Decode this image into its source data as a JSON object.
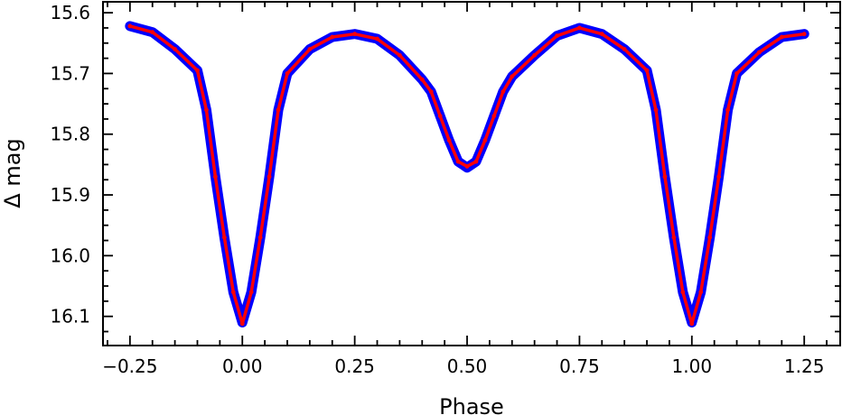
{
  "chart_data": {
    "type": "scatter",
    "title": "",
    "xlabel": "Phase",
    "ylabel": "Δ mag",
    "xlim": [
      -0.31,
      1.33
    ],
    "ylim": [
      16.148,
      15.582
    ],
    "y_inverted": true,
    "grid": false,
    "legend": "none",
    "x_ticks": [
      -0.25,
      0.0,
      0.25,
      0.5,
      0.75,
      1.0,
      1.25
    ],
    "x_tick_labels": [
      "−0.25",
      "0.00",
      "0.25",
      "0.50",
      "0.75",
      "1.00",
      "1.25"
    ],
    "y_ticks": [
      15.6,
      15.7,
      15.8,
      15.9,
      16.0,
      16.1
    ],
    "y_tick_labels": [
      "15.6",
      "15.7",
      "15.8",
      "15.9",
      "16.0",
      "16.1"
    ],
    "colors": {
      "observed": "#0000ff",
      "model": "#ff0000"
    },
    "series": [
      {
        "name": "",
        "color": "#0000ff",
        "x": [
          -0.25,
          -0.2,
          -0.15,
          -0.1,
          -0.08,
          -0.06,
          -0.04,
          -0.02,
          0.0,
          0.02,
          0.04,
          0.06,
          0.08,
          0.1,
          0.15,
          0.2,
          0.25,
          0.3,
          0.35,
          0.4,
          0.42,
          0.44,
          0.46,
          0.48,
          0.5,
          0.52,
          0.54,
          0.56,
          0.58,
          0.6,
          0.65,
          0.7,
          0.75,
          0.8,
          0.85,
          0.9,
          0.92,
          0.94,
          0.96,
          0.98,
          1.0,
          1.02,
          1.04,
          1.06,
          1.08,
          1.1,
          1.15,
          1.2,
          1.25
        ],
        "y": [
          15.622,
          15.632,
          15.66,
          15.695,
          15.76,
          15.87,
          15.97,
          16.06,
          16.11,
          16.06,
          15.97,
          15.87,
          15.76,
          15.7,
          15.66,
          15.64,
          15.635,
          15.643,
          15.67,
          15.71,
          15.73,
          15.77,
          15.81,
          15.845,
          15.855,
          15.845,
          15.81,
          15.77,
          15.73,
          15.705,
          15.67,
          15.638,
          15.625,
          15.635,
          15.66,
          15.695,
          15.76,
          15.87,
          15.97,
          16.06,
          16.11,
          16.06,
          15.97,
          15.87,
          15.76,
          15.7,
          15.665,
          15.64,
          15.635
        ]
      },
      {
        "name": "",
        "color": "#ff0000",
        "x": [
          -0.25,
          -0.2,
          -0.15,
          -0.1,
          -0.08,
          -0.06,
          -0.04,
          -0.02,
          0.0,
          0.02,
          0.04,
          0.06,
          0.08,
          0.1,
          0.15,
          0.2,
          0.25,
          0.3,
          0.35,
          0.4,
          0.42,
          0.44,
          0.46,
          0.48,
          0.5,
          0.52,
          0.54,
          0.56,
          0.58,
          0.6,
          0.65,
          0.7,
          0.75,
          0.8,
          0.85,
          0.9,
          0.92,
          0.94,
          0.96,
          0.98,
          1.0,
          1.02,
          1.04,
          1.06,
          1.08,
          1.1,
          1.15,
          1.2,
          1.25
        ],
        "y": [
          15.622,
          15.632,
          15.66,
          15.695,
          15.76,
          15.87,
          15.97,
          16.06,
          16.112,
          16.06,
          15.97,
          15.87,
          15.76,
          15.7,
          15.66,
          15.64,
          15.635,
          15.643,
          15.67,
          15.71,
          15.73,
          15.77,
          15.81,
          15.845,
          15.853,
          15.845,
          15.81,
          15.77,
          15.73,
          15.705,
          15.67,
          15.638,
          15.625,
          15.635,
          15.66,
          15.695,
          15.76,
          15.87,
          15.97,
          16.06,
          16.112,
          16.06,
          15.97,
          15.87,
          15.76,
          15.7,
          15.665,
          15.64,
          15.635
        ]
      }
    ]
  }
}
